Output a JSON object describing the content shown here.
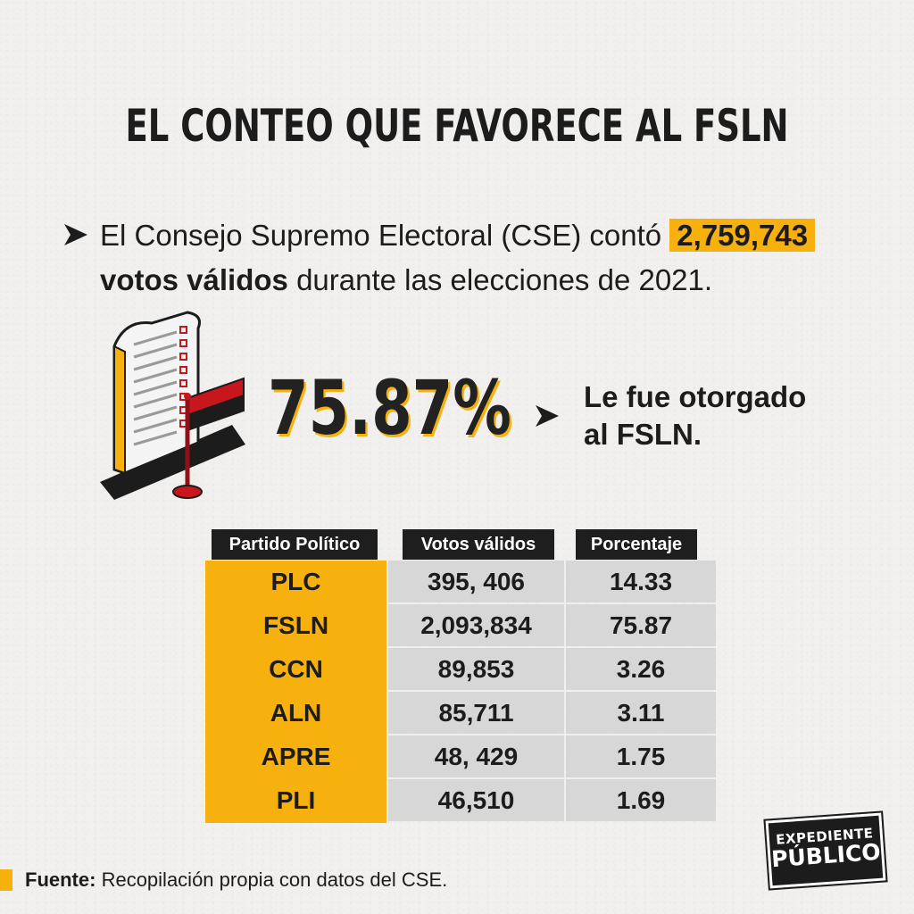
{
  "title": "EL CONTEO QUE FAVORECE AL FSLN",
  "intro": {
    "text_before": "El Consejo Supremo Electoral (CSE) contó",
    "total_votes": "2,759,743",
    "bold_text": "votos válidos",
    "text_after": "durante las elecciones de 2021."
  },
  "highlight": {
    "percent": "75.87%",
    "desc_line1": "Le fue otorgado",
    "desc_line2": "al FSLN."
  },
  "chart_data": {
    "type": "table",
    "columns": [
      "Partido Político",
      "Votos válidos",
      "Porcentaje"
    ],
    "rows": [
      [
        "PLC",
        "395, 406",
        "14.33"
      ],
      [
        "FSLN",
        "2,093,834",
        "75.87"
      ],
      [
        "CCN",
        "89,853",
        "3.26"
      ],
      [
        "ALN",
        "85,711",
        "3.11"
      ],
      [
        "APRE",
        "48, 429",
        "1.75"
      ],
      [
        "PLI",
        "46,510",
        "1.69"
      ]
    ]
  },
  "source": {
    "label": "Fuente:",
    "text": "Recopilación propia con datos del CSE."
  },
  "logo": {
    "line1": "EXPEDIENTE",
    "line2": "PÚBLICO"
  },
  "colors": {
    "accent": "#f6b10f",
    "dark": "#1e1e1e",
    "cell_gray": "#d7d7d7",
    "flag_red": "#c8161d"
  }
}
